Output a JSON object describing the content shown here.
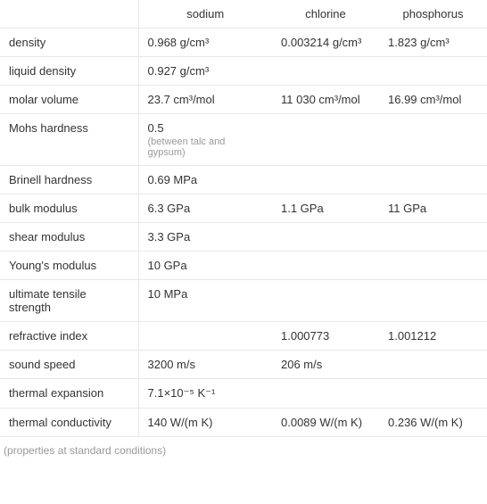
{
  "table": {
    "columns": [
      "",
      "sodium",
      "chlorine",
      "phosphorus"
    ],
    "rows": [
      {
        "label": "density",
        "sodium": "0.968 g/cm³",
        "chlorine": "0.003214 g/cm³",
        "phosphorus": "1.823 g/cm³"
      },
      {
        "label": "liquid density",
        "sodium": "0.927 g/cm³",
        "chlorine": "",
        "phosphorus": ""
      },
      {
        "label": "molar volume",
        "sodium": "23.7 cm³/mol",
        "chlorine": "11 030 cm³/mol",
        "phosphorus": "16.99 cm³/mol"
      },
      {
        "label": "Mohs hardness",
        "sodium": "0.5",
        "sodium_sub": "(between talc and gypsum)",
        "chlorine": "",
        "phosphorus": ""
      },
      {
        "label": "Brinell hardness",
        "sodium": "0.69 MPa",
        "chlorine": "",
        "phosphorus": ""
      },
      {
        "label": "bulk modulus",
        "sodium": "6.3 GPa",
        "chlorine": "1.1 GPa",
        "phosphorus": "11 GPa"
      },
      {
        "label": "shear modulus",
        "sodium": "3.3 GPa",
        "chlorine": "",
        "phosphorus": ""
      },
      {
        "label": "Young's modulus",
        "sodium": "10 GPa",
        "chlorine": "",
        "phosphorus": ""
      },
      {
        "label": "ultimate tensile strength",
        "sodium": "10 MPa",
        "chlorine": "",
        "phosphorus": ""
      },
      {
        "label": "refractive index",
        "sodium": "",
        "chlorine": "1.000773",
        "phosphorus": "1.001212"
      },
      {
        "label": "sound speed",
        "sodium": "3200 m/s",
        "chlorine": "206 m/s",
        "phosphorus": ""
      },
      {
        "label": "thermal expansion",
        "sodium": "7.1×10⁻⁵ K⁻¹",
        "chlorine": "",
        "phosphorus": ""
      },
      {
        "label": "thermal conductivity",
        "sodium": "140 W/(m K)",
        "chlorine": "0.0089 W/(m K)",
        "phosphorus": "0.236 W/(m K)"
      }
    ],
    "footer": "(properties at standard conditions)",
    "colors": {
      "border": "#e8e8e8",
      "text": "#333333",
      "subnote": "#999999",
      "footer": "#999999",
      "background": "#ffffff"
    },
    "font_size": 13,
    "subnote_font_size": 11,
    "footer_font_size": 12
  }
}
